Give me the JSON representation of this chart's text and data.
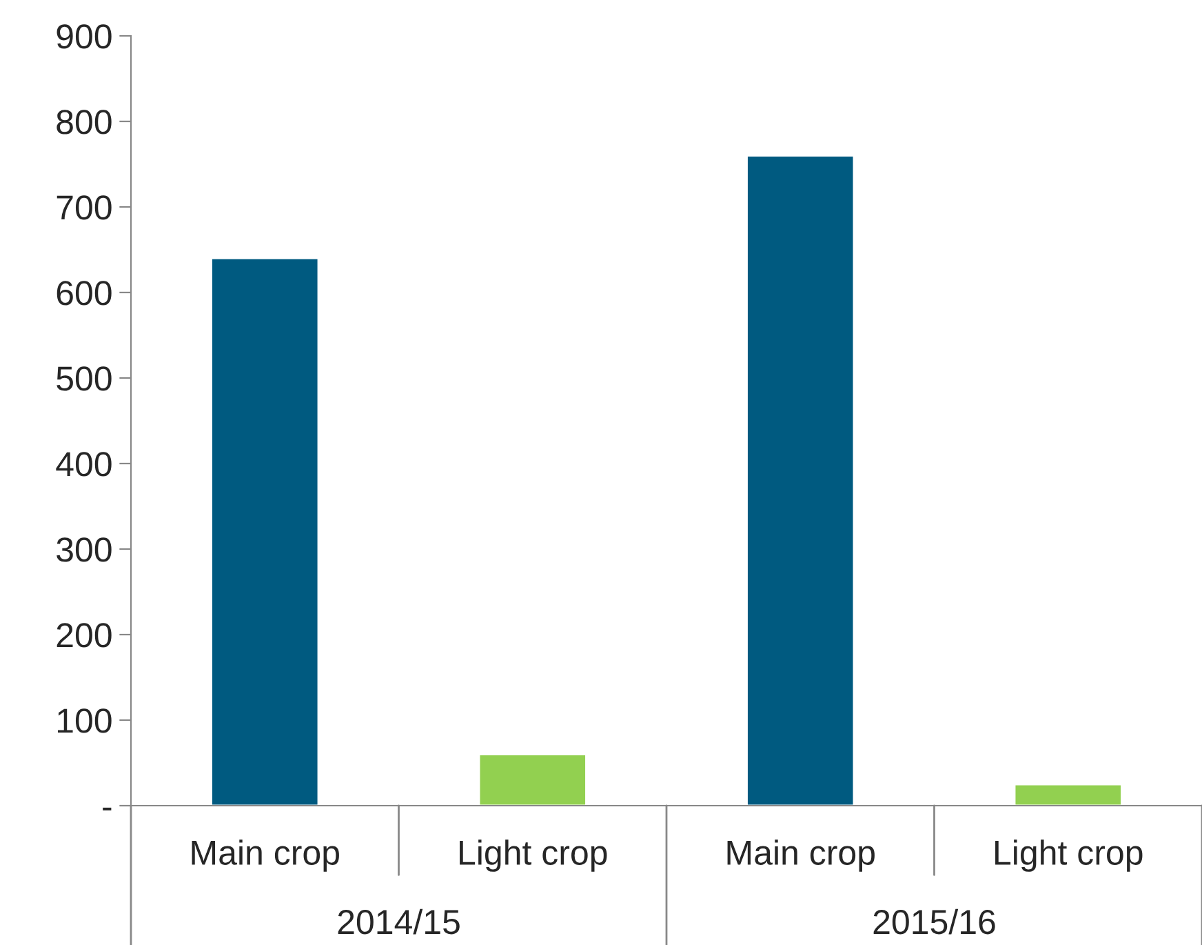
{
  "chart_data": {
    "type": "bar",
    "categories": [
      "Main crop",
      "Light crop",
      "Main crop",
      "Light crop"
    ],
    "values": [
      640,
      60,
      760,
      25
    ],
    "colors": [
      "#005a80",
      "#92d050",
      "#005a80",
      "#92d050"
    ],
    "annotations": [
      "2014/15",
      "2015/16"
    ],
    "ylim": [
      0,
      900
    ],
    "yticks": [
      {
        "value": 0,
        "label": "-"
      },
      100,
      200,
      300,
      400,
      500,
      600,
      700,
      800,
      900
    ],
    "grid": false
  }
}
